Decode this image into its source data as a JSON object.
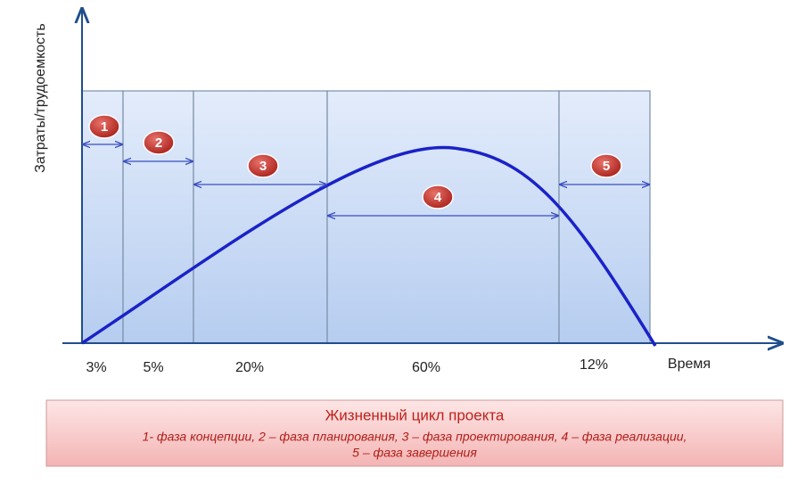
{
  "axes": {
    "y_label": "Затраты/трудоемкость",
    "x_label": "Время"
  },
  "phases": [
    {
      "number": "1",
      "share": "3%"
    },
    {
      "number": "2",
      "share": "5%"
    },
    {
      "number": "3",
      "share": "20%"
    },
    {
      "number": "4",
      "share": "60%"
    },
    {
      "number": "5",
      "share": "12%"
    }
  ],
  "legend": {
    "title": "Жизненный цикл проекта",
    "lines": [
      "1- фаза концепции, 2 – фаза планирования, 3 – фаза проектирования, 4 – фаза реализации,",
      "5 – фаза завершения"
    ]
  }
}
